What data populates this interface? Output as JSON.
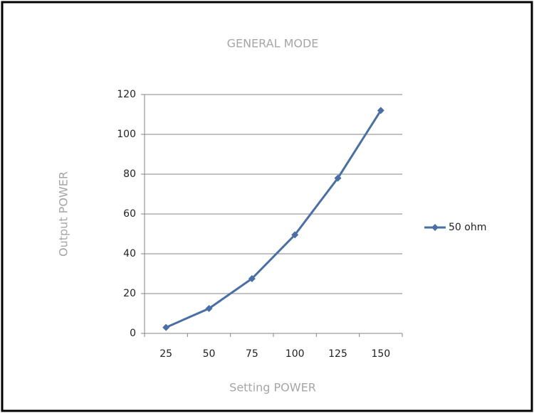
{
  "chart_data": {
    "type": "line",
    "title": "GENERAL MODE",
    "x_label": "Setting POWER",
    "y_label": "Output POWER",
    "categories": [
      "25",
      "50",
      "75",
      "100",
      "125",
      "150"
    ],
    "series": [
      {
        "name": "50 ohm",
        "color": "#4a6fa5",
        "values": [
          3,
          12.5,
          27.5,
          49.5,
          78,
          112
        ]
      }
    ],
    "ylim": [
      0,
      120
    ],
    "yticks": [
      0,
      20,
      40,
      60,
      80,
      100,
      120
    ],
    "grid": true,
    "legend": "right"
  }
}
